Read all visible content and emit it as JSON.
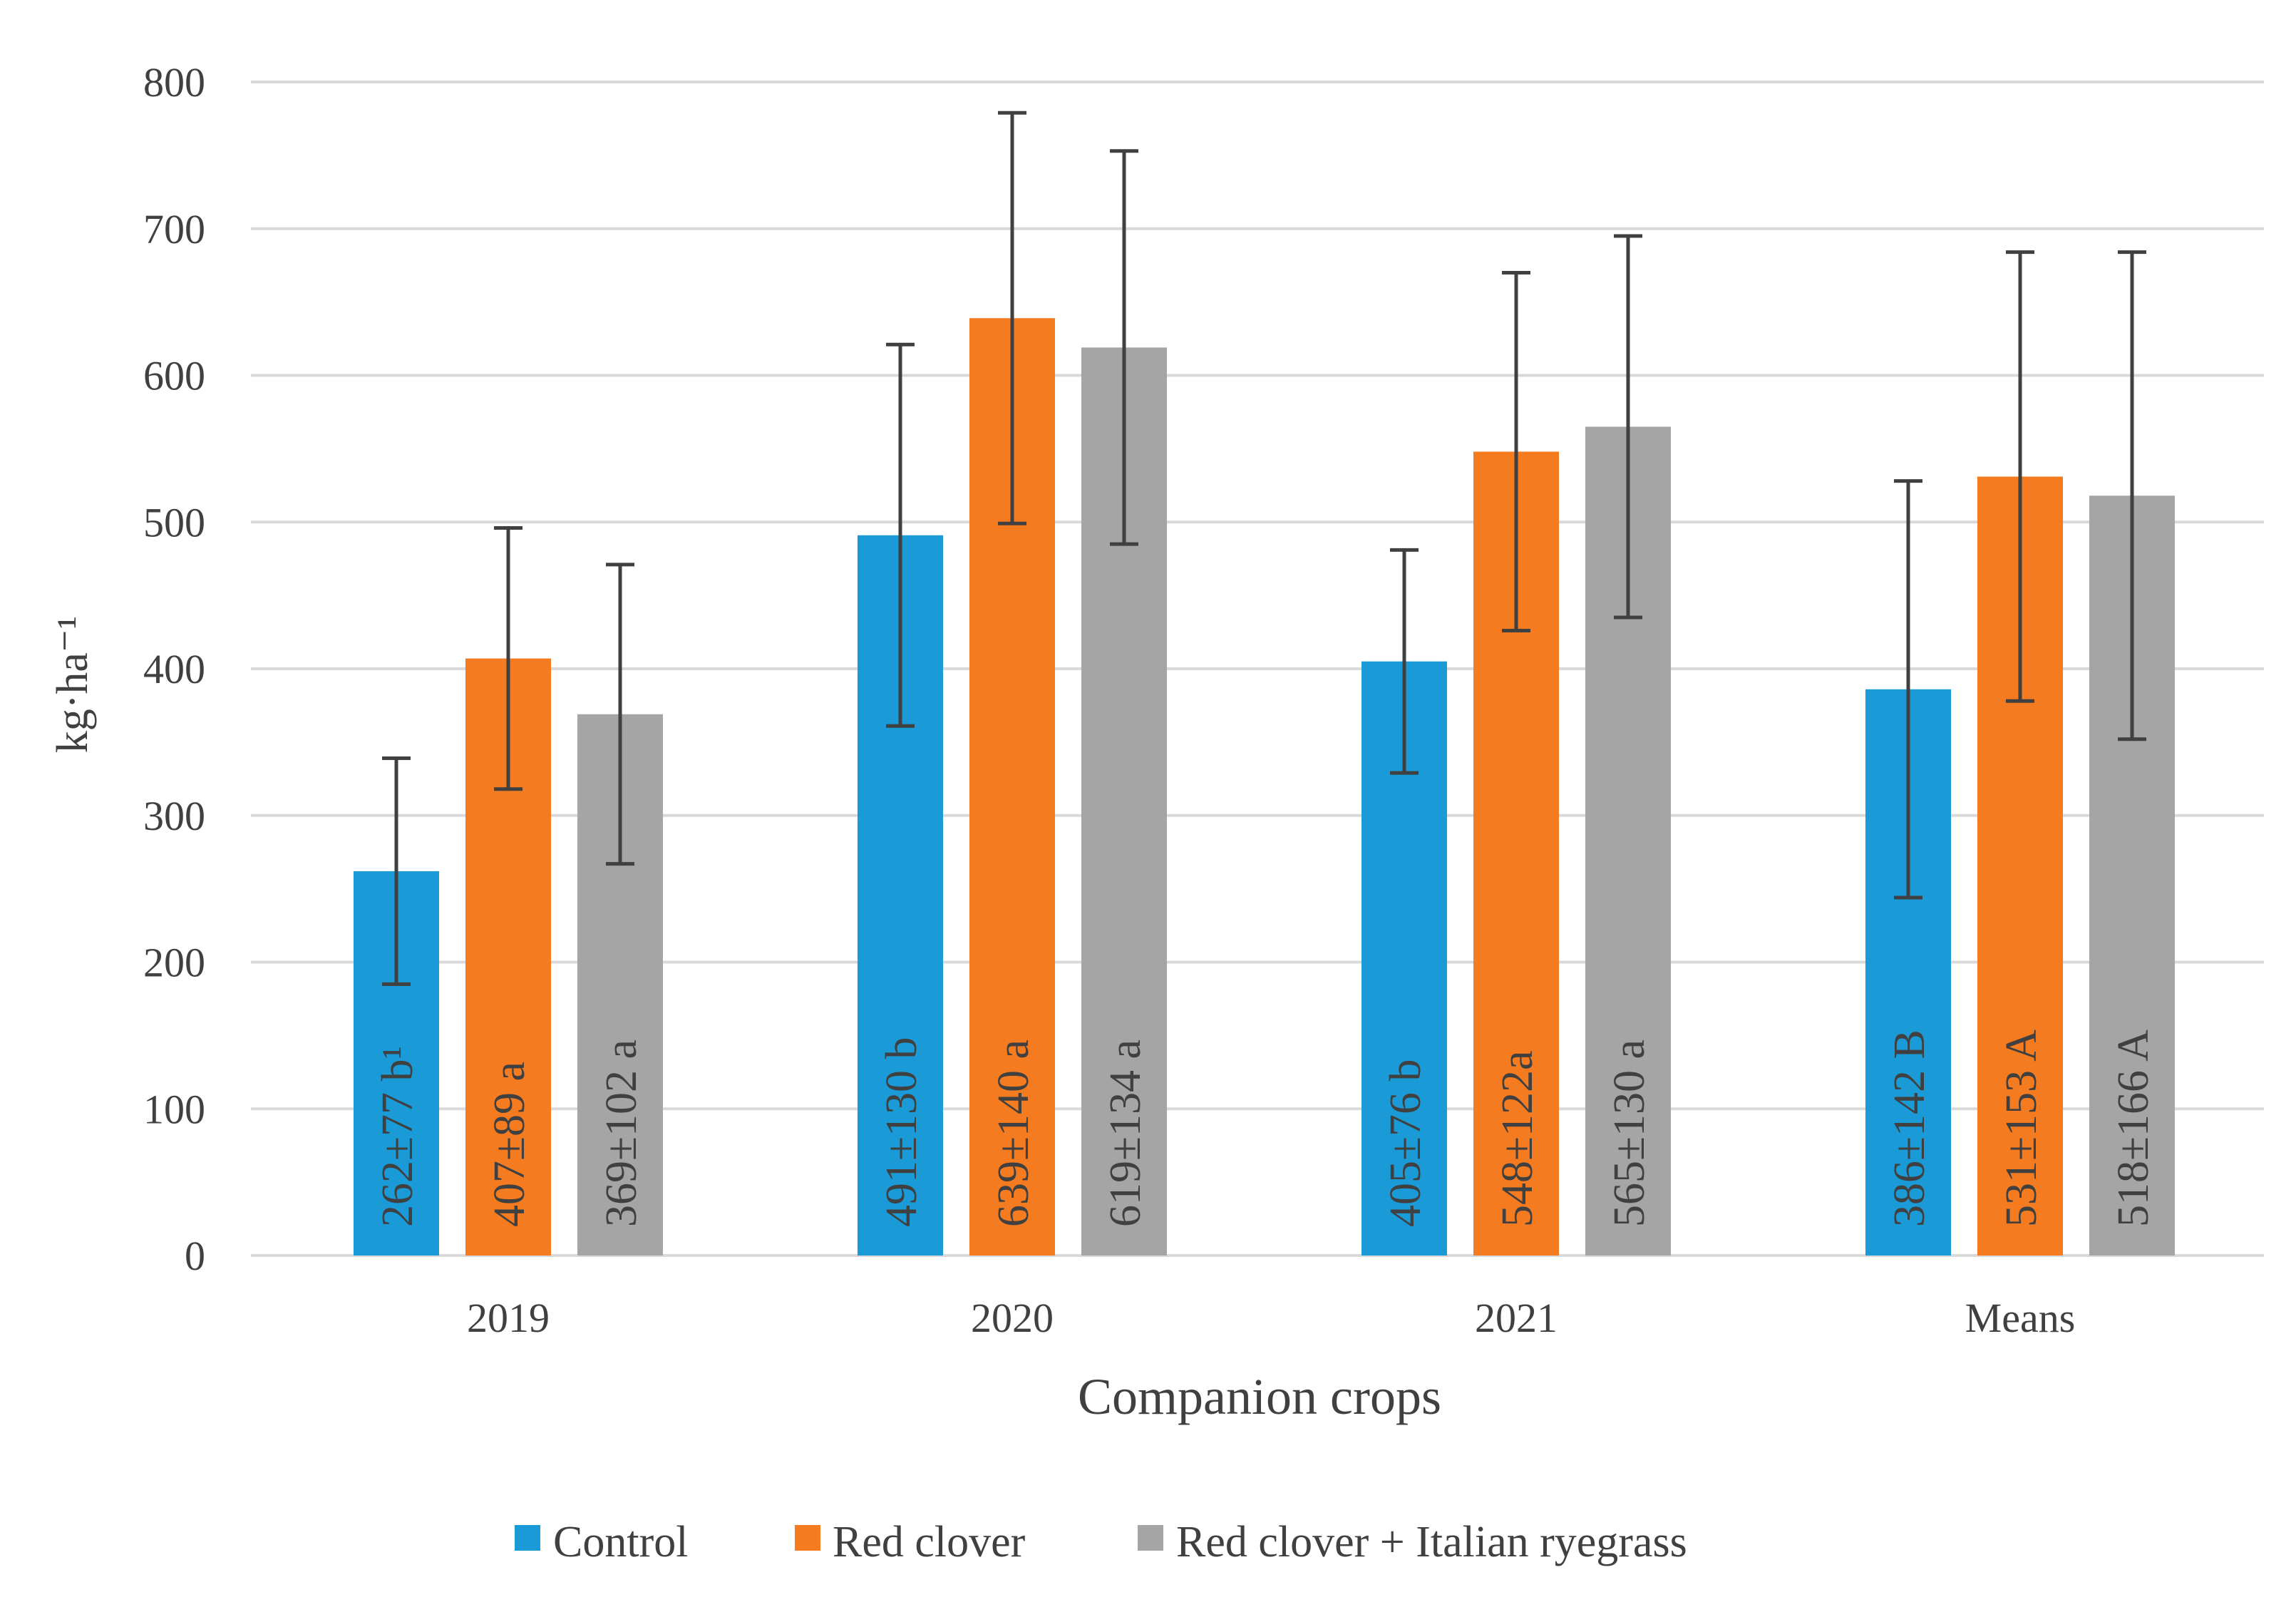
{
  "chart_data": {
    "type": "bar",
    "categories": [
      "2019",
      "2020",
      "2021",
      "Means"
    ],
    "xlabel": "Companion crops",
    "ylabel": "kg·ha⁻¹",
    "ylim": [
      0,
      800
    ],
    "yticks": [
      0,
      100,
      200,
      300,
      400,
      500,
      600,
      700,
      800
    ],
    "grid": true,
    "legend_position": "bottom",
    "series": [
      {
        "name": "Control",
        "color": "#1a9bd7",
        "values": [
          262,
          491,
          405,
          386
        ],
        "errors": [
          77,
          130,
          76,
          142
        ],
        "labels": [
          "262±77 b¹",
          "491±130 b",
          "405±76 b",
          "386±142 B"
        ]
      },
      {
        "name": "Red clover",
        "color": "#f47b20",
        "values": [
          407,
          639,
          548,
          531
        ],
        "errors": [
          89,
          140,
          122,
          153
        ],
        "labels": [
          "407±89 a",
          "639±140 a",
          "548±122a",
          "531±153 A"
        ]
      },
      {
        "name": "Red clover + Italian ryegrass",
        "color": "#a5a5a5",
        "values": [
          369,
          619,
          565,
          518
        ],
        "errors": [
          102,
          134,
          130,
          166
        ],
        "labels": [
          "369±102 a",
          "619±134 a",
          "565±130 a",
          "518±166 A"
        ]
      }
    ]
  }
}
